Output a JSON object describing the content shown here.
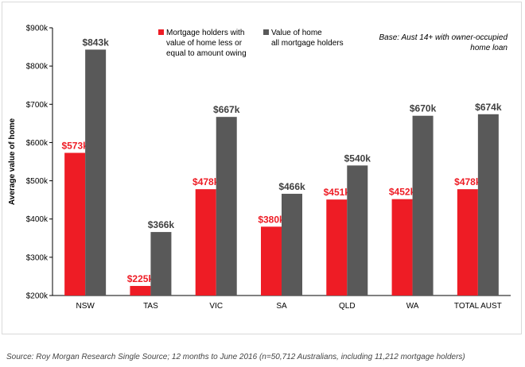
{
  "colors": {
    "series1": "#ee1c25",
    "series2": "#595959",
    "value_label_1": "#ee1c25",
    "value_label_2": "#404040",
    "axis": "#000000"
  },
  "chart_data": {
    "type": "bar",
    "categories": [
      "NSW",
      "TAS",
      "VIC",
      "SA",
      "QLD",
      "WA",
      "TOTAL AUST"
    ],
    "series": [
      {
        "name": "Mortgage holders with value of home less or equal to amount owing",
        "name_lines": [
          "Mortgage holders with",
          "value of home less or",
          "equal to amount owing"
        ],
        "values": [
          573,
          225,
          478,
          380,
          451,
          452,
          478
        ],
        "labels": [
          "$573k",
          "$225k",
          "$478k",
          "$380k",
          "$451k",
          "$452k",
          "$478k"
        ]
      },
      {
        "name": "Value of home all mortgage holders",
        "name_lines": [
          "Value of home",
          "all mortgage holders"
        ],
        "values": [
          843,
          366,
          667,
          466,
          540,
          670,
          674
        ],
        "labels": [
          "$843k",
          "$366k",
          "$667k",
          "$466k",
          "$540k",
          "$670k",
          "$674k"
        ]
      }
    ],
    "ylabel": "Average value of home",
    "ylim": [
      200,
      900
    ],
    "yticks": [
      200,
      300,
      400,
      500,
      600,
      700,
      800,
      900
    ],
    "ytick_labels": [
      "$200k",
      "$300k",
      "$400k",
      "$500k",
      "$600k",
      "$700k",
      "$800k",
      "$900k"
    ],
    "grid": false,
    "legend_position": "top-center",
    "annotation_lines": [
      "Base: Aust 14+ with owner-occupied",
      "home loan"
    ]
  },
  "source": "Source: Roy Morgan Research Single Source; 12 months to June 2016 (n=50,712 Australians, including 11,212 mortgage holders)"
}
